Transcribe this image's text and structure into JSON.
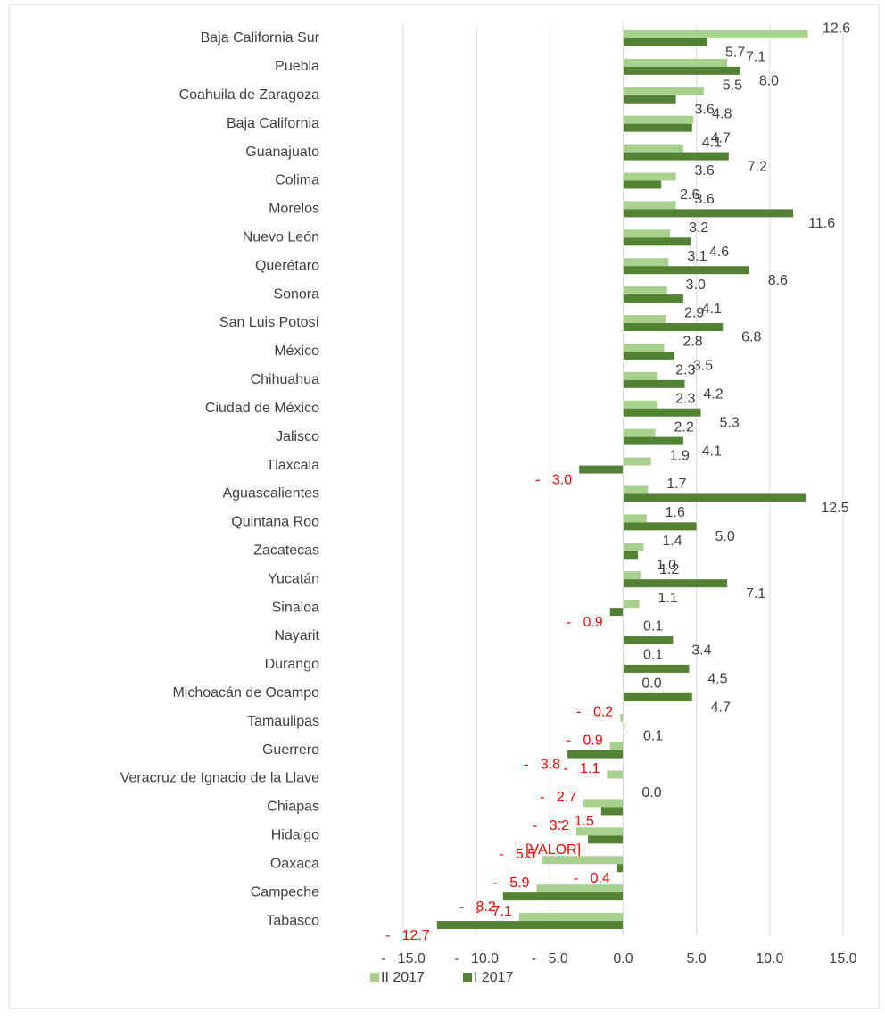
{
  "chart_data": {
    "type": "barh",
    "categories": [
      "Baja California Sur",
      "Puebla",
      "Coahuila de Zaragoza",
      "Baja California",
      "Guanajuato",
      "Colima",
      "Morelos",
      "Nuevo León",
      "Querétaro",
      "Sonora",
      "San Luis Potosí",
      "México",
      "Chihuahua",
      "Ciudad de México",
      "Jalisco",
      "Tlaxcala",
      "Aguascalientes",
      "Quintana Roo",
      "Zacatecas",
      "Yucatán",
      "Sinaloa",
      "Nayarit",
      "Durango",
      "Michoacán de Ocampo",
      "Tamaulipas",
      "Guerrero",
      "Veracruz de Ignacio de la Llave",
      "Chiapas",
      "Hidalgo",
      "Oaxaca",
      "Campeche",
      "Tabasco"
    ],
    "series": [
      {
        "name": "II 2017",
        "color": "#a9d18e",
        "values": [
          12.6,
          7.1,
          5.5,
          4.8,
          4.1,
          3.6,
          3.6,
          3.2,
          3.1,
          3.0,
          2.9,
          2.8,
          2.3,
          2.3,
          2.2,
          1.9,
          1.7,
          1.6,
          1.4,
          1.2,
          1.1,
          0.1,
          0.1,
          0.0,
          -0.2,
          -0.9,
          -1.1,
          -2.7,
          -3.2,
          -5.5,
          -5.9,
          -7.1
        ],
        "value_labels": [
          "12.6",
          "7.1",
          "5.5",
          "4.8",
          "4.1",
          "3.6",
          "3.6",
          "3.2",
          "3.1",
          "3.0",
          "2.9",
          "2.8",
          "2.3",
          "2.3",
          "2.2",
          "1.9",
          "1.7",
          "1.6",
          "1.4",
          "1.2",
          "1.1",
          "0.1",
          "0.1",
          "0.0",
          "-   0.2",
          "-   0.9",
          "-   1.1",
          "-   2.7",
          "-   3.2",
          "-   5.5",
          "-   5.9",
          "-   7.1"
        ]
      },
      {
        "name": "I 2017",
        "color": "#548235",
        "values": [
          5.7,
          8.0,
          3.6,
          4.7,
          7.2,
          2.6,
          11.6,
          4.6,
          8.6,
          4.1,
          6.8,
          3.5,
          4.2,
          5.3,
          4.1,
          -3.0,
          12.5,
          5.0,
          1.0,
          7.1,
          -0.9,
          3.4,
          4.5,
          4.7,
          0.1,
          -3.8,
          0.0,
          -1.5,
          -2.4,
          -0.4,
          -8.2,
          -12.7
        ],
        "value_labels": [
          "5.7",
          "8.0",
          "3.6",
          "4.7",
          "7.2",
          "2.6",
          "11.6",
          "4.6",
          "8.6",
          "4.1",
          "6.8",
          "3.5",
          "4.2",
          "5.3",
          "4.1",
          "-   3.0",
          "12.5",
          "5.0",
          "1.0",
          "7.1",
          "-   0.9",
          "3.4",
          "4.5",
          "4.7",
          "0.1",
          "-   3.8",
          "0.0",
          "-   1.5",
          "[VALOR]",
          "-   0.4",
          "-   8.2",
          "-   12.7"
        ]
      }
    ],
    "xlim": [
      -15,
      15
    ],
    "xticks": [
      {
        "value": -15,
        "label": "-   15.0"
      },
      {
        "value": -10,
        "label": "-   10.0"
      },
      {
        "value": -5,
        "label": "-   5.0"
      },
      {
        "value": 0,
        "label": "0.0"
      },
      {
        "value": 5,
        "label": "5.0"
      },
      {
        "value": 10,
        "label": "10.0"
      },
      {
        "value": 15,
        "label": "15.0"
      }
    ],
    "grid": true,
    "legend": "bottom",
    "negative_label_color": "#ff0000"
  }
}
